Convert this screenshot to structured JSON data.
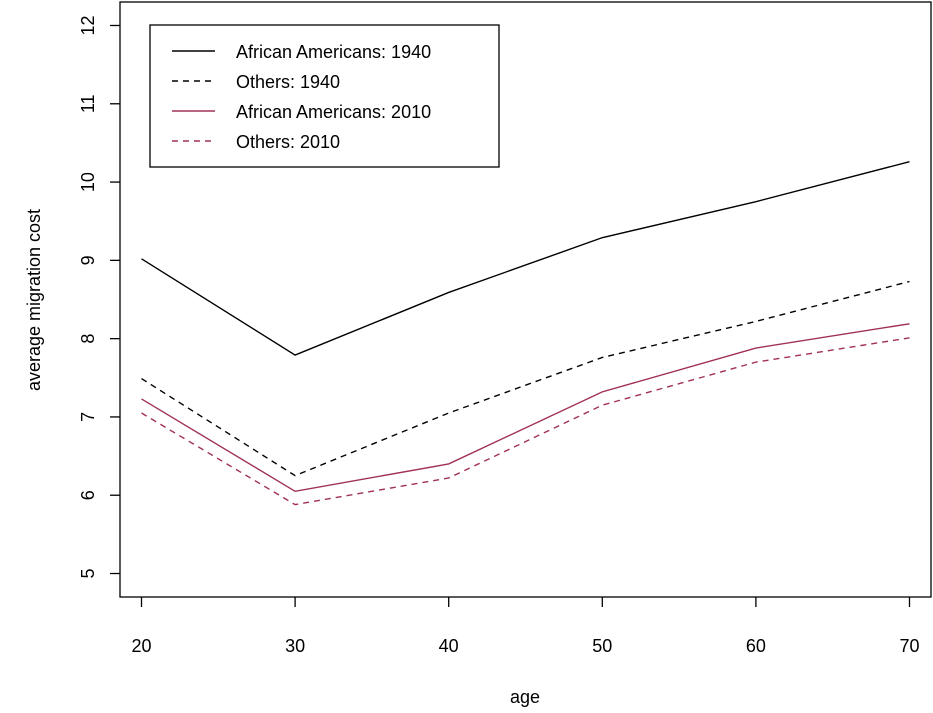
{
  "chart_data": {
    "type": "line",
    "title": "",
    "xlabel": "age",
    "ylabel": "average migration cost",
    "xlim": [
      18.6,
      71.4
    ],
    "ylim": [
      4.7,
      12.3
    ],
    "x_ticks": [
      20,
      30,
      40,
      50,
      60,
      70
    ],
    "y_ticks": [
      5,
      6,
      7,
      8,
      9,
      10,
      11,
      12
    ],
    "grid": false,
    "legend_position": "top-left",
    "x": [
      20,
      30,
      40,
      50,
      60,
      70
    ],
    "series": [
      {
        "name": "African Americans: 1940",
        "values": [
          9.02,
          7.79,
          8.59,
          9.29,
          9.75,
          10.26
        ],
        "color": "#000000",
        "dash": "solid"
      },
      {
        "name": "Others: 1940",
        "values": [
          7.49,
          6.25,
          7.05,
          7.76,
          8.22,
          8.73
        ],
        "color": "#000000",
        "dash": "dashed"
      },
      {
        "name": "African Americans: 2010",
        "values": [
          7.23,
          6.05,
          6.4,
          7.32,
          7.88,
          8.19
        ],
        "color": "#a0305a",
        "dash": "solid"
      },
      {
        "name": "Others: 2010",
        "values": [
          7.05,
          5.88,
          6.22,
          7.15,
          7.7,
          8.01
        ],
        "color": "#a0305a",
        "dash": "dashed"
      }
    ]
  }
}
